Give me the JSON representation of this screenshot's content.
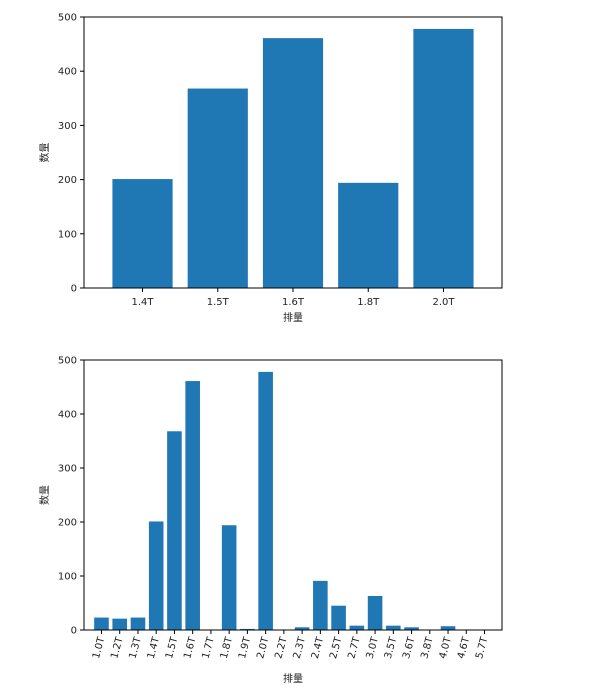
{
  "chart_data": [
    {
      "type": "bar",
      "categories": [
        "1.4T",
        "1.5T",
        "1.6T",
        "1.8T",
        "2.0T"
      ],
      "values": [
        201,
        368,
        461,
        194,
        478
      ],
      "title": "",
      "xlabel": "排量",
      "ylabel": "数量",
      "ylim": [
        0,
        500
      ],
      "yticks": [
        0,
        100,
        200,
        300,
        400,
        500
      ],
      "grid": false,
      "color": "#1f77b4"
    },
    {
      "type": "bar",
      "categories": [
        "1.0T",
        "1.2T",
        "1.3T",
        "1.4T",
        "1.5T",
        "1.6T",
        "1.7T",
        "1.8T",
        "1.9T",
        "2.0T",
        "2.2T",
        "2.3T",
        "2.4T",
        "2.5T",
        "2.7T",
        "3.0T",
        "3.5T",
        "3.6T",
        "3.8T",
        "4.0T",
        "4.6T",
        "5.7T"
      ],
      "values": [
        23,
        21,
        23,
        201,
        368,
        461,
        0,
        194,
        2,
        478,
        0,
        5,
        91,
        45,
        8,
        63,
        8,
        5,
        0,
        7,
        0,
        0
      ],
      "title": "",
      "xlabel": "排量",
      "ylabel": "数量",
      "ylim": [
        0,
        500
      ],
      "yticks": [
        0,
        100,
        200,
        300,
        400,
        500
      ],
      "xtick_rotation": 75,
      "grid": false,
      "color": "#1f77b4"
    }
  ]
}
